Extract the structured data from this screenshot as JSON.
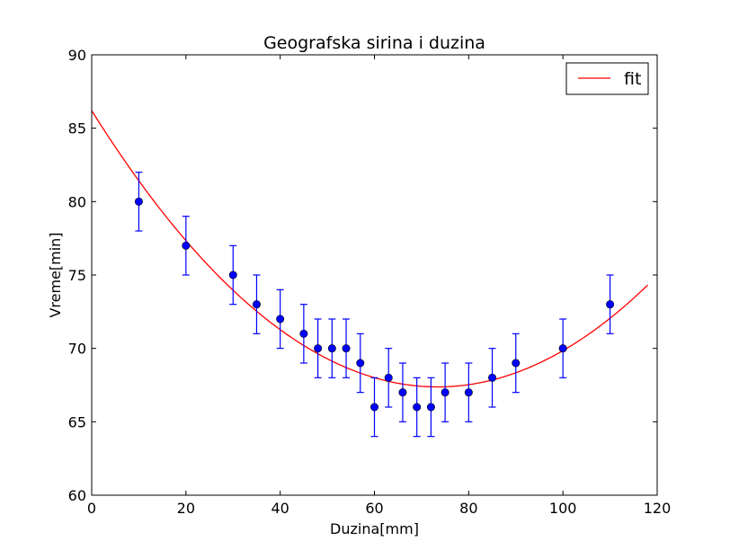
{
  "chart_data": {
    "type": "scatter",
    "title": "Geografska sirina i duzina",
    "xlabel": "Duzina[mm]",
    "ylabel": "Vreme[min]",
    "xlim": [
      0,
      120
    ],
    "ylim": [
      60,
      90
    ],
    "xticks": [
      0,
      20,
      40,
      60,
      80,
      100,
      120
    ],
    "yticks": [
      60,
      65,
      70,
      75,
      80,
      85,
      90
    ],
    "grid": false,
    "legend": {
      "position": "top-right",
      "entries": [
        "fit"
      ]
    },
    "series": [
      {
        "kind": "errorbar",
        "color": "#0000ff",
        "x": [
          10,
          20,
          30,
          35,
          40,
          45,
          48,
          51,
          54,
          57,
          60,
          63,
          66,
          69,
          72,
          75,
          80,
          85,
          90,
          100,
          110
        ],
        "y": [
          80,
          77,
          75,
          73,
          72,
          71,
          70,
          70,
          70,
          69,
          66,
          68,
          67,
          66,
          66,
          67,
          67,
          68,
          69,
          70,
          73
        ],
        "yerr": 2
      },
      {
        "kind": "line",
        "name": "fit",
        "color": "#ff0000",
        "model": "quadratic",
        "coefficients": {
          "a": 0.0034927,
          "b": -0.5128,
          "c": 86.2
        },
        "x_range": [
          0,
          118
        ]
      }
    ]
  }
}
